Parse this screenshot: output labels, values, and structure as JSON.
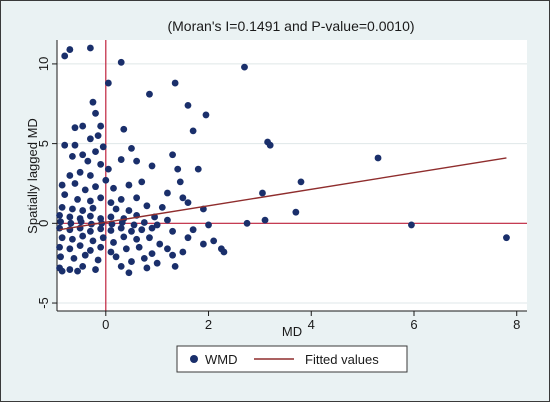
{
  "chart_data": {
    "type": "scatter",
    "title": "(Moran's I=0.1491 and P-value=0.0010)",
    "xlabel": "MD",
    "ylabel": "Spatially lagged MD",
    "xlim": [
      -0.95,
      8.2
    ],
    "ylim": [
      -5.5,
      11.5
    ],
    "x_ticks": [
      0,
      2,
      4,
      6,
      8
    ],
    "y_ticks": [
      -5,
      0,
      5,
      10
    ],
    "grid": "horizontal",
    "reference_lines": {
      "x": 0,
      "y": 0
    },
    "legend_position": "bottom",
    "colors": {
      "background": "#eaf2f3",
      "plot_area": "#ffffff",
      "points": "#1a2f6b",
      "fit_line": "#8f2d2d",
      "reference_lines": "#c0223d",
      "grid": "#dfe7e8"
    },
    "series": [
      {
        "name": "WMD",
        "kind": "scatter",
        "points": [
          [
            -0.8,
            10.5
          ],
          [
            -0.7,
            10.9
          ],
          [
            -0.3,
            11.0
          ],
          [
            0.3,
            10.1
          ],
          [
            0.05,
            8.8
          ],
          [
            -0.25,
            7.6
          ],
          [
            -0.2,
            6.9
          ],
          [
            -0.45,
            6.1
          ],
          [
            -0.6,
            6.0
          ],
          [
            -0.1,
            6.1
          ],
          [
            -0.3,
            5.3
          ],
          [
            -0.15,
            5.5
          ],
          [
            -0.8,
            4.9
          ],
          [
            -0.6,
            4.9
          ],
          [
            -0.45,
            4.3
          ],
          [
            -0.65,
            4.2
          ],
          [
            -0.2,
            4.5
          ],
          [
            -0.05,
            4.8
          ],
          [
            -0.35,
            3.9
          ],
          [
            -0.1,
            3.7
          ],
          [
            0.05,
            3.4
          ],
          [
            0.35,
            5.9
          ],
          [
            0.5,
            4.7
          ],
          [
            0.3,
            4.0
          ],
          [
            -0.7,
            3.0
          ],
          [
            -0.5,
            3.2
          ],
          [
            -0.3,
            3.0
          ],
          [
            -0.85,
            2.4
          ],
          [
            -0.6,
            2.5
          ],
          [
            -0.4,
            2.1
          ],
          [
            -0.2,
            2.3
          ],
          [
            0.0,
            2.7
          ],
          [
            0.15,
            2.2
          ],
          [
            0.45,
            2.4
          ],
          [
            0.7,
            2.6
          ],
          [
            -0.8,
            1.8
          ],
          [
            -0.55,
            1.5
          ],
          [
            -0.3,
            1.4
          ],
          [
            -0.1,
            1.6
          ],
          [
            0.1,
            1.3
          ],
          [
            0.3,
            1.5
          ],
          [
            0.6,
            1.6
          ],
          [
            -0.85,
            1.0
          ],
          [
            -0.65,
            0.9
          ],
          [
            -0.45,
            0.8
          ],
          [
            -0.25,
            0.95
          ],
          [
            0.2,
            0.9
          ],
          [
            0.45,
            0.8
          ],
          [
            0.8,
            1.1
          ],
          [
            1.1,
            1.0
          ],
          [
            -0.9,
            0.5
          ],
          [
            -0.7,
            0.4
          ],
          [
            -0.5,
            0.3
          ],
          [
            -0.3,
            0.45
          ],
          [
            -0.1,
            0.3
          ],
          [
            0.1,
            0.4
          ],
          [
            0.35,
            0.3
          ],
          [
            0.6,
            0.5
          ],
          [
            0.95,
            0.4
          ],
          [
            1.2,
            0.2
          ],
          [
            -0.88,
            0.1
          ],
          [
            -0.68,
            0.0
          ],
          [
            -0.48,
            0.1
          ],
          [
            -0.28,
            -0.05
          ],
          [
            -0.08,
            0.0
          ],
          [
            0.12,
            -0.05
          ],
          [
            0.32,
            0.05
          ],
          [
            0.55,
            -0.1
          ],
          [
            0.75,
            0.05
          ],
          [
            1.0,
            -0.1
          ],
          [
            -0.9,
            -0.3
          ],
          [
            -0.7,
            -0.4
          ],
          [
            -0.5,
            -0.3
          ],
          [
            -0.3,
            -0.5
          ],
          [
            -0.1,
            -0.35
          ],
          [
            0.1,
            -0.45
          ],
          [
            0.3,
            -0.3
          ],
          [
            0.5,
            -0.5
          ],
          [
            0.7,
            -0.4
          ],
          [
            0.9,
            -0.3
          ],
          [
            -0.85,
            -0.9
          ],
          [
            -0.65,
            -1.0
          ],
          [
            -0.45,
            -0.8
          ],
          [
            -0.25,
            -1.1
          ],
          [
            -0.05,
            -0.9
          ],
          [
            0.15,
            -1.2
          ],
          [
            0.35,
            -0.85
          ],
          [
            0.6,
            -1.0
          ],
          [
            0.85,
            -0.9
          ],
          [
            1.05,
            -1.3
          ],
          [
            -0.9,
            -1.5
          ],
          [
            -0.7,
            -1.6
          ],
          [
            -0.5,
            -1.4
          ],
          [
            -0.3,
            -1.7
          ],
          [
            -0.1,
            -1.5
          ],
          [
            0.1,
            -1.8
          ],
          [
            0.4,
            -1.6
          ],
          [
            0.65,
            -1.5
          ],
          [
            0.9,
            -1.9
          ],
          [
            1.2,
            -1.6
          ],
          [
            -0.88,
            -2.1
          ],
          [
            -0.62,
            -2.2
          ],
          [
            -0.4,
            -2.0
          ],
          [
            -0.15,
            -2.3
          ],
          [
            0.2,
            -2.1
          ],
          [
            0.5,
            -2.4
          ],
          [
            0.75,
            -2.2
          ],
          [
            1.0,
            -2.5
          ],
          [
            1.3,
            -2.0
          ],
          [
            1.5,
            -1.8
          ],
          [
            -0.9,
            -2.8
          ],
          [
            -0.7,
            -2.9
          ],
          [
            -0.45,
            -2.7
          ],
          [
            -0.2,
            -2.9
          ],
          [
            0.3,
            -2.7
          ],
          [
            0.45,
            -3.1
          ],
          [
            0.8,
            -2.8
          ],
          [
            1.35,
            -2.7
          ],
          [
            -0.85,
            -3.0
          ],
          [
            -0.55,
            -3.0
          ],
          [
            0.6,
            3.9
          ],
          [
            0.9,
            3.6
          ],
          [
            1.3,
            4.3
          ],
          [
            1.4,
            3.4
          ],
          [
            1.8,
            3.4
          ],
          [
            0.85,
            8.1
          ],
          [
            1.35,
            8.8
          ],
          [
            1.6,
            7.4
          ],
          [
            1.95,
            6.8
          ],
          [
            1.7,
            5.8
          ],
          [
            1.2,
            1.9
          ],
          [
            1.5,
            1.6
          ],
          [
            1.6,
            1.3
          ],
          [
            1.9,
            0.9
          ],
          [
            1.45,
            2.6
          ],
          [
            1.7,
            -0.4
          ],
          [
            2.0,
            -0.1
          ],
          [
            2.1,
            -1.1
          ],
          [
            2.25,
            -1.6
          ],
          [
            2.3,
            -1.8
          ],
          [
            1.9,
            -1.3
          ],
          [
            1.6,
            -0.9
          ],
          [
            1.3,
            -0.5
          ],
          [
            2.7,
            9.8
          ],
          [
            2.75,
            0.0
          ],
          [
            3.1,
            0.2
          ],
          [
            3.05,
            1.9
          ],
          [
            3.15,
            5.1
          ],
          [
            3.2,
            4.9
          ],
          [
            3.8,
            2.6
          ],
          [
            3.7,
            0.7
          ],
          [
            5.3,
            4.1
          ],
          [
            5.95,
            -0.1
          ],
          [
            7.8,
            -0.9
          ]
        ]
      },
      {
        "name": "Fitted values",
        "kind": "line",
        "points": [
          [
            -0.9,
            -0.4
          ],
          [
            7.8,
            4.1
          ]
        ]
      }
    ]
  },
  "legend": {
    "items": [
      {
        "label": "WMD",
        "marker": "dot"
      },
      {
        "label": "Fitted values",
        "marker": "line"
      }
    ]
  }
}
